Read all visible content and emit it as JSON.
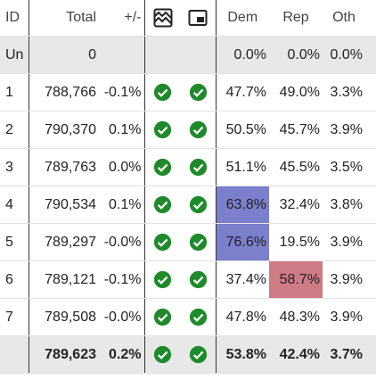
{
  "header": {
    "id": "ID",
    "total": "Total",
    "change": "+/-",
    "dem": "Dem",
    "rep": "Rep",
    "oth": "Oth"
  },
  "unassigned": [
    "Un",
    "0",
    "0.0%",
    "0.0%",
    "0.0%"
  ],
  "rows": [
    [
      "1",
      "788,766",
      "-0.1%",
      "47.7%",
      "49.0%",
      "3.3%"
    ],
    [
      "2",
      "790,370",
      "0.1%",
      "50.5%",
      "45.7%",
      "3.9%"
    ],
    [
      "3",
      "789,763",
      "0.0%",
      "51.1%",
      "45.5%",
      "3.5%"
    ],
    [
      "4",
      "790,534",
      "0.1%",
      "63.8%",
      "32.4%",
      "3.8%"
    ],
    [
      "5",
      "789,297",
      "-0.0%",
      "76.6%",
      "19.5%",
      "3.9%"
    ],
    [
      "6",
      "789,121",
      "-0.1%",
      "37.4%",
      "58.7%",
      "3.9%"
    ],
    [
      "7",
      "789,508",
      "-0.0%",
      "47.8%",
      "48.3%",
      "3.9%"
    ]
  ],
  "footer": [
    "789,623",
    "0.2%",
    "53.8%",
    "42.4%",
    "3.7%"
  ]
}
